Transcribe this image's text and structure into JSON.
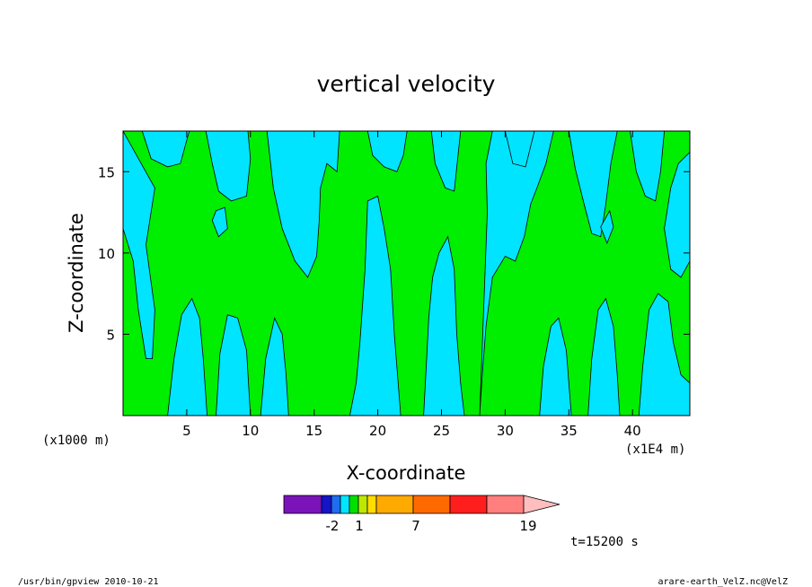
{
  "chart_data": {
    "type": "heatmap",
    "title": "vertical velocity",
    "xlabel": "X-coordinate",
    "ylabel": "Z-coordinate",
    "x_unit_left": "(x1000 m)",
    "x_unit_right": "(x1E4 m)",
    "xlim": [
      0,
      44.5
    ],
    "ylim": [
      0,
      17.5
    ],
    "x_ticks": [
      5,
      10,
      15,
      20,
      25,
      30,
      35,
      40
    ],
    "y_ticks": [
      5,
      10,
      15
    ],
    "legend": {
      "levels": [
        -2,
        1,
        7,
        19
      ],
      "colors": [
        "#7a14b8",
        "#1414c8",
        "#1e6cf0",
        "#00e6ff",
        "#00e000",
        "#bfe800",
        "#ffdd00",
        "#ffaa00",
        "#ff6a00",
        "#ff1e1e",
        "#ff7f7f",
        "#ffbebe"
      ]
    },
    "annotation": "t=15200 s",
    "field_colors": {
      "positive": "#00ee00",
      "negative": "#00e4ff"
    }
  },
  "footer": {
    "left": "/usr/bin/gpview   2010-10-21",
    "right": "arare-earth_VelZ.nc@VelZ"
  }
}
